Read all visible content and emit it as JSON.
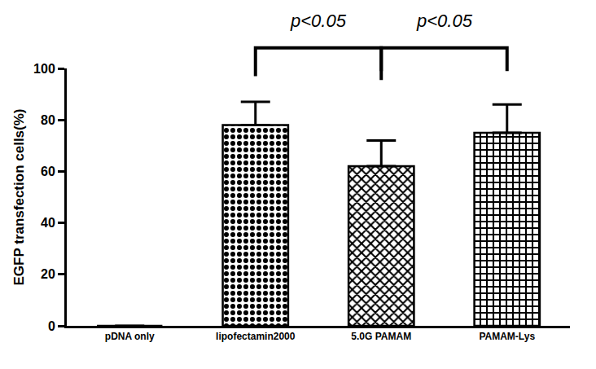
{
  "chart_data": {
    "type": "bar",
    "y_label": "EGFP transfection cells(%)",
    "categories": [
      "pDNA only",
      "lipofectamin2000",
      "5.0G PAMAM",
      "PAMAM-Lys"
    ],
    "values": [
      0,
      78,
      62,
      75
    ],
    "errors": [
      null,
      9,
      10,
      11
    ],
    "color": "#000000",
    "ylim": [
      0,
      100
    ],
    "yticks": [
      0,
      20,
      40,
      60,
      80,
      100
    ],
    "grid": false,
    "annotations": [
      {
        "text": "p<0.05",
        "between": [
          "lipofectamin2000",
          "5.0G PAMAM"
        ]
      },
      {
        "text": "p<0.05",
        "between": [
          "5.0G PAMAM",
          "PAMAM-Lys"
        ]
      }
    ]
  }
}
